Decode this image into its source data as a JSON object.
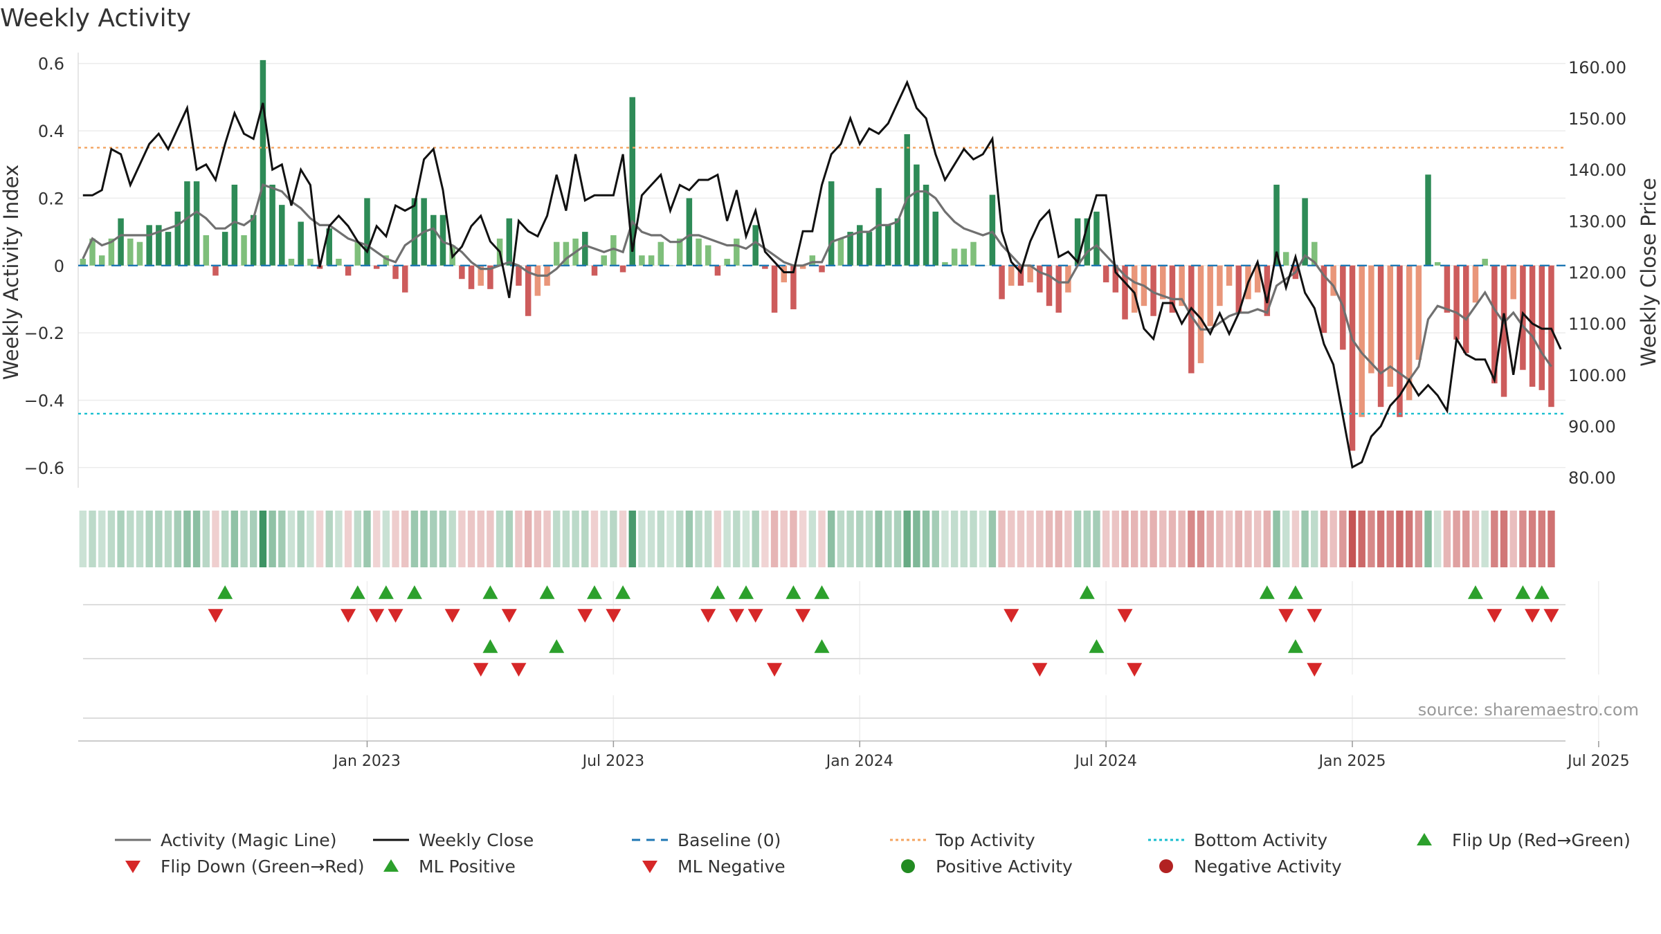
{
  "title": "Weekly Activity",
  "source_note": "source: sharemaestro.com",
  "colors": {
    "strong_green": "#2e8b57",
    "light_green": "#7fbf7b",
    "strong_red": "#cd5c5c",
    "light_red": "#e9967a",
    "magic_line": "#707070",
    "close_line": "#111111",
    "baseline": "#1f77b4",
    "top": "#f4a460",
    "bottom": "#17becf",
    "up": "#2ca02c",
    "down": "#d62728",
    "pos_dot": "#228b22",
    "neg_dot": "#b22222"
  },
  "chart_data": {
    "type": "bar",
    "title": "Weekly Activity",
    "ylabel": "Weekly Activity Index",
    "y2label": "Weekly Close Price",
    "ylim": [
      -0.66,
      0.62
    ],
    "y2lim": [
      78.0,
      162.0
    ],
    "yticks": [
      0.6,
      0.4,
      0.2,
      0,
      -0.2,
      -0.4,
      -0.6
    ],
    "ytick_labels": [
      "0.6",
      "0.4",
      "0.2",
      "0",
      "−0.2",
      "−0.4",
      "−0.6"
    ],
    "y2ticks": [
      160,
      150,
      140,
      130,
      120,
      110,
      100,
      90,
      80
    ],
    "y2tick_labels": [
      "160.00",
      "150.00",
      "140.00",
      "130.00",
      "120.00",
      "110.00",
      "100.00",
      "90.00",
      "80.00"
    ],
    "xticks": [
      {
        "week": 30,
        "label": "Jan 2023"
      },
      {
        "week": 56,
        "label": "Jul 2023"
      },
      {
        "week": 82,
        "label": "Jan 2024"
      },
      {
        "week": 108,
        "label": "Jul 2024"
      },
      {
        "week": 134,
        "label": "Jan 2025"
      },
      {
        "week": 160,
        "label": "Jul 2025"
      }
    ],
    "n_weeks": 157,
    "top_activity": 0.35,
    "bottom_activity": -0.44,
    "activity": [
      0.02,
      0.08,
      0.03,
      0.08,
      0.14,
      0.08,
      0.07,
      0.12,
      0.12,
      0.1,
      0.16,
      0.25,
      0.25,
      0.09,
      -0.03,
      0.1,
      0.24,
      0.09,
      0.15,
      0.61,
      0.24,
      0.18,
      0.02,
      0.13,
      0.02,
      -0.01,
      0.11,
      0.02,
      -0.03,
      0.07,
      0.2,
      -0.01,
      0.03,
      -0.04,
      -0.08,
      0.2,
      0.2,
      0.15,
      0.15,
      0.06,
      -0.04,
      -0.07,
      -0.06,
      -0.07,
      0.08,
      0.14,
      -0.06,
      -0.15,
      -0.09,
      -0.06,
      0.07,
      0.07,
      0.08,
      0.1,
      -0.03,
      0.03,
      0.09,
      -0.02,
      0.5,
      0.03,
      0.03,
      0.07,
      0.0,
      0.08,
      0.2,
      0.08,
      0.06,
      -0.03,
      0.02,
      0.08,
      0.0,
      0.12,
      -0.01,
      -0.14,
      -0.05,
      -0.13,
      -0.01,
      0.03,
      -0.02,
      0.25,
      0.08,
      0.1,
      0.12,
      0.1,
      0.23,
      0.12,
      0.14,
      0.39,
      0.3,
      0.24,
      0.16,
      0.01,
      0.05,
      0.05,
      0.07,
      0.0,
      0.21,
      -0.1,
      -0.06,
      -0.06,
      -0.05,
      -0.08,
      -0.12,
      -0.14,
      -0.08,
      0.14,
      0.14,
      0.16,
      -0.05,
      -0.08,
      -0.16,
      -0.14,
      -0.12,
      -0.15,
      -0.1,
      -0.14,
      -0.12,
      -0.32,
      -0.29,
      -0.18,
      -0.12,
      -0.06,
      -0.14,
      -0.1,
      -0.08,
      -0.15,
      0.24,
      0.04,
      -0.04,
      0.2,
      0.07,
      -0.2,
      -0.09,
      -0.25,
      -0.55,
      -0.45,
      -0.32,
      -0.42,
      -0.36,
      -0.45,
      -0.4,
      -0.28,
      0.27,
      0.01,
      -0.14,
      -0.22,
      -0.26,
      -0.11,
      0.02,
      -0.35,
      -0.39,
      -0.1,
      -0.31,
      -0.36,
      -0.37,
      -0.42
    ],
    "magic_line": [
      0.02,
      0.08,
      0.06,
      0.07,
      0.09,
      0.09,
      0.09,
      0.09,
      0.1,
      0.11,
      0.12,
      0.14,
      0.16,
      0.14,
      0.11,
      0.11,
      0.13,
      0.12,
      0.14,
      0.24,
      0.23,
      0.22,
      0.19,
      0.17,
      0.14,
      0.12,
      0.12,
      0.1,
      0.08,
      0.07,
      0.06,
      0.04,
      0.02,
      0.01,
      0.06,
      0.08,
      0.1,
      0.11,
      0.07,
      0.06,
      0.04,
      0.01,
      -0.01,
      -0.01,
      0.0,
      0.01,
      0.0,
      -0.02,
      -0.03,
      -0.03,
      -0.01,
      0.02,
      0.04,
      0.06,
      0.05,
      0.04,
      0.05,
      0.04,
      0.13,
      0.1,
      0.09,
      0.09,
      0.07,
      0.07,
      0.09,
      0.09,
      0.08,
      0.07,
      0.06,
      0.06,
      0.05,
      0.07,
      0.05,
      0.03,
      0.01,
      0.0,
      0.0,
      0.01,
      0.01,
      0.07,
      0.08,
      0.09,
      0.1,
      0.1,
      0.12,
      0.12,
      0.13,
      0.2,
      0.22,
      0.22,
      0.2,
      0.16,
      0.13,
      0.11,
      0.1,
      0.09,
      0.1,
      0.06,
      0.03,
      0.0,
      0.0,
      -0.02,
      -0.03,
      -0.05,
      -0.05,
      0.0,
      0.04,
      0.06,
      0.03,
      0.0,
      -0.03,
      -0.05,
      -0.06,
      -0.08,
      -0.09,
      -0.1,
      -0.1,
      -0.15,
      -0.19,
      -0.19,
      -0.17,
      -0.15,
      -0.14,
      -0.14,
      -0.13,
      -0.14,
      -0.06,
      -0.04,
      -0.02,
      0.03,
      0.01,
      -0.03,
      -0.06,
      -0.12,
      -0.22,
      -0.26,
      -0.29,
      -0.32,
      -0.3,
      -0.32,
      -0.34,
      -0.3,
      -0.16,
      -0.12,
      -0.13,
      -0.14,
      -0.16,
      -0.12,
      -0.08,
      -0.13,
      -0.17,
      -0.14,
      -0.18,
      -0.21,
      -0.26,
      -0.3
    ],
    "weekly_close": [
      135,
      135,
      136,
      144,
      143,
      137,
      141,
      145,
      147,
      144,
      148,
      152,
      140,
      141,
      138,
      145,
      151,
      147,
      146,
      153,
      140,
      141,
      133,
      140,
      137,
      121,
      129,
      131,
      129,
      126,
      124,
      129,
      127,
      133,
      132,
      133,
      142,
      144,
      136,
      123,
      125,
      129,
      131,
      126,
      124,
      115,
      130,
      128,
      127,
      131,
      139,
      132,
      143,
      134,
      135,
      135,
      135,
      143,
      124,
      135,
      137,
      139,
      132,
      137,
      136,
      138,
      138,
      139,
      130,
      136,
      127,
      132,
      124,
      122,
      120,
      120,
      128,
      128,
      137,
      143,
      145,
      150,
      145,
      148,
      147,
      149,
      153,
      157,
      152,
      150,
      143,
      138,
      141,
      144,
      142,
      143,
      146,
      128,
      122,
      120,
      126,
      130,
      132,
      123,
      124,
      122,
      129,
      135,
      135,
      120,
      118,
      116,
      109,
      107,
      114,
      114,
      110,
      113,
      111,
      108,
      112,
      108,
      112,
      118,
      122,
      114,
      124,
      117,
      123,
      116,
      113,
      106,
      102,
      92,
      82,
      83,
      88,
      90,
      94,
      96,
      99,
      96,
      98,
      96,
      93,
      107,
      104,
      103,
      103,
      99,
      112,
      100,
      112,
      110,
      109,
      109,
      105
    ],
    "heat_strip": [
      0.02,
      0.08,
      0.03,
      0.08,
      0.14,
      0.08,
      0.07,
      0.12,
      0.12,
      0.1,
      0.16,
      0.25,
      0.25,
      0.09,
      -0.03,
      0.1,
      0.24,
      0.09,
      0.15,
      0.61,
      0.24,
      0.18,
      0.02,
      0.13,
      0.02,
      -0.01,
      0.11,
      0.02,
      -0.03,
      0.07,
      0.2,
      -0.01,
      0.03,
      -0.04,
      -0.08,
      0.2,
      0.2,
      0.15,
      0.15,
      0.06,
      -0.04,
      -0.07,
      -0.06,
      -0.07,
      0.08,
      0.14,
      -0.06,
      -0.15,
      -0.09,
      -0.06,
      0.07,
      0.07,
      0.08,
      0.1,
      -0.03,
      0.03,
      0.09,
      -0.02,
      0.5,
      0.03,
      0.03,
      0.07,
      0.0,
      0.08,
      0.2,
      0.08,
      0.06,
      -0.03,
      0.02,
      0.08,
      0.0,
      0.12,
      -0.01,
      -0.14,
      -0.05,
      -0.13,
      -0.01,
      0.03,
      -0.02,
      0.25,
      0.08,
      0.1,
      0.12,
      0.1,
      0.23,
      0.12,
      0.14,
      0.39,
      0.3,
      0.24,
      0.16,
      0.01,
      0.05,
      0.05,
      0.07,
      0.0,
      0.21,
      -0.1,
      -0.06,
      -0.06,
      -0.05,
      -0.08,
      -0.12,
      -0.14,
      -0.08,
      0.14,
      0.14,
      0.16,
      -0.05,
      -0.08,
      -0.16,
      -0.14,
      -0.12,
      -0.15,
      -0.1,
      -0.14,
      -0.12,
      -0.32,
      -0.29,
      -0.18,
      -0.12,
      -0.06,
      -0.14,
      -0.1,
      -0.08,
      -0.15,
      0.24,
      0.04,
      -0.04,
      0.2,
      0.07,
      -0.2,
      -0.09,
      -0.25,
      -0.55,
      -0.45,
      -0.32,
      -0.42,
      -0.36,
      -0.45,
      -0.4,
      -0.28,
      0.27,
      0.01,
      -0.14,
      -0.22,
      -0.26,
      -0.11,
      0.02,
      -0.35,
      -0.39,
      -0.1,
      -0.31,
      -0.36,
      -0.37,
      -0.42
    ],
    "flip_up_weeks": [
      15,
      29,
      32,
      35,
      43,
      49,
      54,
      57,
      67,
      70,
      75,
      78,
      106,
      125,
      128,
      147,
      152,
      154
    ],
    "flip_down_weeks": [
      14,
      28,
      31,
      33,
      39,
      45,
      53,
      56,
      66,
      69,
      71,
      76,
      98,
      110,
      127,
      130,
      149,
      153,
      155
    ],
    "ml_positive_weeks": [
      43,
      50,
      78,
      107,
      128
    ],
    "ml_negative_weeks": [
      42,
      46,
      73,
      101,
      111,
      130
    ],
    "legend": [
      {
        "label": "Activity (Magic Line)",
        "kind": "line",
        "color": "#707070"
      },
      {
        "label": "Weekly Close",
        "kind": "line",
        "color": "#111111"
      },
      {
        "label": "Baseline (0)",
        "kind": "dash",
        "color": "#1f77b4"
      },
      {
        "label": "Top Activity",
        "kind": "dot-line",
        "color": "#f4a460"
      },
      {
        "label": "Bottom Activity",
        "kind": "dot-line",
        "color": "#17becf"
      },
      {
        "label": "Flip Up (Red→Green)",
        "kind": "tri-up",
        "color": "#2ca02c"
      },
      {
        "label": "Flip Down (Green→Red)",
        "kind": "tri-down",
        "color": "#d62728"
      },
      {
        "label": "ML Positive",
        "kind": "tri-up",
        "color": "#2ca02c"
      },
      {
        "label": "ML Negative",
        "kind": "tri-down",
        "color": "#d62728"
      },
      {
        "label": "Positive Activity",
        "kind": "dot",
        "color": "#228b22"
      },
      {
        "label": "Negative Activity",
        "kind": "dot",
        "color": "#b22222"
      }
    ]
  }
}
